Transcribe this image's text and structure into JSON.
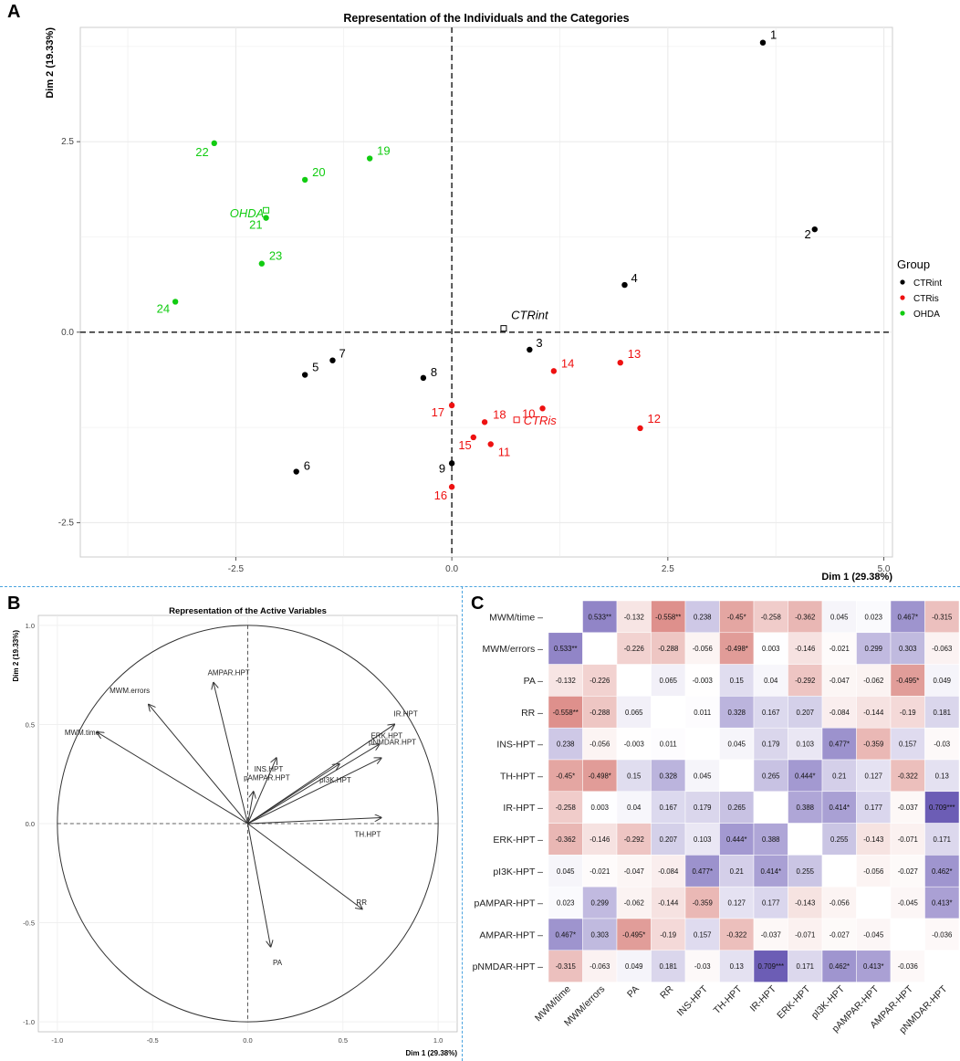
{
  "chart_data": [
    {
      "panel": "A",
      "type": "scatter",
      "title": "Representation of the Individuals and the Categories",
      "xlabel": "Dim 1 (29.38%)",
      "ylabel": "Dim 2 (19.33%)",
      "xlim": [
        -4.3,
        5.1
      ],
      "ylim": [
        -2.95,
        4.0
      ],
      "xticks": [
        -2.5,
        0.0,
        2.5,
        5.0
      ],
      "xtick_labels": [
        "-2.5",
        "0.0",
        "2.5",
        "5.0"
      ],
      "yticks": [
        -2.5,
        0.0,
        2.5
      ],
      "ytick_labels": [
        "-2.5",
        "0.0",
        "2.5"
      ],
      "grid": true,
      "legend": {
        "title": "Group",
        "position": "right",
        "entries": [
          {
            "label": "CTRint",
            "color": "#000000"
          },
          {
            "label": "CTRis",
            "color": "#ee1111"
          },
          {
            "label": "OHDA",
            "color": "#11cc11"
          }
        ]
      },
      "groups": {
        "CTRint": "#000000",
        "CTRis": "#ee1111",
        "OHDA": "#11cc11"
      },
      "points": [
        {
          "label": "1",
          "x": 3.6,
          "y": 3.8,
          "group": "CTRint"
        },
        {
          "label": "2",
          "x": 4.2,
          "y": 1.35,
          "group": "CTRint"
        },
        {
          "label": "3",
          "x": 0.9,
          "y": -0.23,
          "group": "CTRint"
        },
        {
          "label": "4",
          "x": 2.0,
          "y": 0.62,
          "group": "CTRint"
        },
        {
          "label": "5",
          "x": -1.7,
          "y": -0.56,
          "group": "CTRint"
        },
        {
          "label": "6",
          "x": -1.8,
          "y": -1.83,
          "group": "CTRint"
        },
        {
          "label": "7",
          "x": -1.38,
          "y": -0.37,
          "group": "CTRint"
        },
        {
          "label": "8",
          "x": -0.33,
          "y": -0.6,
          "group": "CTRint"
        },
        {
          "label": "9",
          "x": 0.0,
          "y": -1.72,
          "group": "CTRint"
        },
        {
          "label": "10",
          "x": 1.05,
          "y": -1.0,
          "group": "CTRis"
        },
        {
          "label": "11",
          "x": 0.45,
          "y": -1.47,
          "group": "CTRis"
        },
        {
          "label": "12",
          "x": 2.18,
          "y": -1.26,
          "group": "CTRis"
        },
        {
          "label": "13",
          "x": 1.95,
          "y": -0.4,
          "group": "CTRis"
        },
        {
          "label": "14",
          "x": 1.18,
          "y": -0.51,
          "group": "CTRis"
        },
        {
          "label": "15",
          "x": 0.25,
          "y": -1.38,
          "group": "CTRis"
        },
        {
          "label": "16",
          "x": 0.0,
          "y": -2.03,
          "group": "CTRis"
        },
        {
          "label": "17",
          "x": 0.0,
          "y": -0.96,
          "group": "CTRis"
        },
        {
          "label": "18",
          "x": 0.38,
          "y": -1.18,
          "group": "CTRis"
        },
        {
          "label": "19",
          "x": -0.95,
          "y": 2.28,
          "group": "OHDA"
        },
        {
          "label": "20",
          "x": -1.7,
          "y": 2.0,
          "group": "OHDA"
        },
        {
          "label": "21",
          "x": -2.15,
          "y": 1.5,
          "group": "OHDA"
        },
        {
          "label": "22",
          "x": -2.75,
          "y": 2.48,
          "group": "OHDA"
        },
        {
          "label": "23",
          "x": -2.2,
          "y": 0.9,
          "group": "OHDA"
        },
        {
          "label": "24",
          "x": -3.2,
          "y": 0.4,
          "group": "OHDA"
        }
      ],
      "categories": [
        {
          "label": "CTRint",
          "x": 0.6,
          "y": 0.05,
          "group": "CTRint"
        },
        {
          "label": "CTRis",
          "x": 0.75,
          "y": -1.15,
          "group": "CTRis"
        },
        {
          "label": "OHDA",
          "x": -2.15,
          "y": 1.6,
          "group": "OHDA"
        }
      ]
    },
    {
      "panel": "B",
      "type": "scatter",
      "subtype": "correlation-circle",
      "title": "Representation of the Active Variables",
      "xlabel": "Dim 1 (29.38%)",
      "ylabel": "Dim 2 (19.33%)",
      "xlim": [
        -1.1,
        1.1
      ],
      "ylim": [
        -1.05,
        1.05
      ],
      "xticks": [
        -1.0,
        -0.5,
        0.0,
        0.5,
        1.0
      ],
      "xtick_labels": [
        "-1.0",
        "-0.5",
        "0.0",
        "0.5",
        "1.0"
      ],
      "yticks": [
        -1.0,
        -0.5,
        0.0,
        0.5,
        1.0
      ],
      "ytick_labels": [
        "-1.0",
        "-0.5",
        "0.0",
        "0.5",
        "1.0"
      ],
      "grid": false,
      "variables": [
        {
          "name": "MWM.time",
          "x": -0.79,
          "y": 0.46
        },
        {
          "name": "MWM.errors",
          "x": -0.52,
          "y": 0.6
        },
        {
          "name": "AMPAR.HPT",
          "x": -0.18,
          "y": 0.71
        },
        {
          "name": "INS.HPT",
          "x": 0.15,
          "y": 0.33
        },
        {
          "name": "pAMPAR.HPT",
          "x": 0.03,
          "y": 0.16
        },
        {
          "name": "pI3K.HPT",
          "x": 0.48,
          "y": 0.3
        },
        {
          "name": "ERK.HPT",
          "x": 0.69,
          "y": 0.4
        },
        {
          "name": "IR.HPT",
          "x": 0.77,
          "y": 0.5
        },
        {
          "name": "pNMDAR.HPT",
          "x": 0.7,
          "y": 0.33
        },
        {
          "name": "TH.HPT",
          "x": 0.7,
          "y": 0.03
        },
        {
          "name": "RR",
          "x": 0.6,
          "y": -0.43
        },
        {
          "name": "PA",
          "x": 0.12,
          "y": -0.62
        }
      ]
    },
    {
      "panel": "C",
      "type": "heatmap",
      "variables": [
        "MWM/time",
        "MWM/errors",
        "PA",
        "RR",
        "INS-HPT",
        "TH-HPT",
        "IR-HPT",
        "ERK-HPT",
        "pI3K-HPT",
        "pAMPAR-HPT",
        "AMPAR-HPT",
        "pNMDAR-HPT"
      ],
      "values": [
        [
          null,
          0.533,
          -0.132,
          -0.558,
          0.238,
          -0.45,
          -0.258,
          -0.362,
          0.045,
          0.023,
          0.467,
          -0.315
        ],
        [
          0.533,
          null,
          -0.226,
          -0.288,
          -0.056,
          -0.498,
          0.003,
          -0.146,
          -0.021,
          0.299,
          0.303,
          -0.063
        ],
        [
          -0.132,
          -0.226,
          null,
          0.065,
          -0.003,
          0.15,
          0.04,
          -0.292,
          -0.047,
          -0.062,
          -0.495,
          0.049
        ],
        [
          -0.558,
          -0.288,
          0.065,
          null,
          0.011,
          0.328,
          0.167,
          0.207,
          -0.084,
          -0.144,
          -0.19,
          0.181
        ],
        [
          0.238,
          -0.056,
          -0.003,
          0.011,
          null,
          0.045,
          0.179,
          0.103,
          0.477,
          -0.359,
          0.157,
          -0.03
        ],
        [
          -0.45,
          -0.498,
          0.15,
          0.328,
          0.045,
          null,
          0.265,
          0.444,
          0.21,
          0.127,
          -0.322,
          0.13
        ],
        [
          -0.258,
          0.003,
          0.04,
          0.167,
          0.179,
          0.265,
          null,
          0.388,
          0.414,
          0.177,
          -0.037,
          0.709
        ],
        [
          -0.362,
          -0.146,
          -0.292,
          0.207,
          0.103,
          0.444,
          0.388,
          null,
          0.255,
          -0.143,
          -0.071,
          0.171
        ],
        [
          0.045,
          -0.021,
          -0.047,
          -0.084,
          0.477,
          0.21,
          0.414,
          0.255,
          null,
          -0.056,
          -0.027,
          0.462
        ],
        [
          0.023,
          0.299,
          -0.062,
          -0.144,
          -0.359,
          0.127,
          0.177,
          -0.143,
          -0.056,
          null,
          -0.045,
          0.413
        ],
        [
          0.467,
          0.303,
          -0.495,
          -0.19,
          0.157,
          -0.322,
          -0.037,
          -0.071,
          -0.027,
          -0.045,
          null,
          -0.036
        ],
        [
          -0.315,
          -0.063,
          0.049,
          0.181,
          -0.03,
          0.13,
          0.709,
          0.171,
          0.462,
          0.413,
          -0.036,
          null
        ]
      ],
      "labels": [
        [
          "",
          "0.533**",
          "-0.132",
          "-0.558**",
          "0.238",
          "-0.45*",
          "-0.258",
          "-0.362",
          "0.045",
          "0.023",
          "0.467*",
          "-0.315"
        ],
        [
          "0.533**",
          "",
          "-0.226",
          "-0.288",
          "-0.056",
          "-0.498*",
          "0.003",
          "-0.146",
          "-0.021",
          "0.299",
          "0.303",
          "-0.063"
        ],
        [
          "-0.132",
          "-0.226",
          "",
          "0.065",
          "-0.003",
          "0.15",
          "0.04",
          "-0.292",
          "-0.047",
          "-0.062",
          "-0.495*",
          "0.049"
        ],
        [
          "-0.558**",
          "-0.288",
          "0.065",
          "",
          "0.011",
          "0.328",
          "0.167",
          "0.207",
          "-0.084",
          "-0.144",
          "-0.19",
          "0.181"
        ],
        [
          "0.238",
          "-0.056",
          "-0.003",
          "0.011",
          "",
          "0.045",
          "0.179",
          "0.103",
          "0.477*",
          "-0.359",
          "0.157",
          "-0.03"
        ],
        [
          "-0.45*",
          "-0.498*",
          "0.15",
          "0.328",
          "0.045",
          "",
          "0.265",
          "0.444*",
          "0.21",
          "0.127",
          "-0.322",
          "0.13"
        ],
        [
          "-0.258",
          "0.003",
          "0.04",
          "0.167",
          "0.179",
          "0.265",
          "",
          "0.388",
          "0.414*",
          "0.177",
          "-0.037",
          "0.709***"
        ],
        [
          "-0.362",
          "-0.146",
          "-0.292",
          "0.207",
          "0.103",
          "0.444*",
          "0.388",
          "",
          "0.255",
          "-0.143",
          "-0.071",
          "0.171"
        ],
        [
          "0.045",
          "-0.021",
          "-0.047",
          "-0.084",
          "0.477*",
          "0.21",
          "0.414*",
          "0.255",
          "",
          "-0.056",
          "-0.027",
          "0.462*"
        ],
        [
          "0.023",
          "0.299",
          "-0.062",
          "-0.144",
          "-0.359",
          "0.127",
          "0.177",
          "-0.143",
          "-0.056",
          "",
          "-0.045",
          "0.413*"
        ],
        [
          "0.467*",
          "0.303",
          "-0.495*",
          "-0.19",
          "0.157",
          "-0.322",
          "-0.037",
          "-0.071",
          "-0.027",
          "-0.045",
          "",
          "-0.036"
        ],
        [
          "-0.315",
          "-0.063",
          "0.049",
          "0.181",
          "-0.03",
          "0.13",
          "0.709***",
          "0.171",
          "0.462*",
          "0.413*",
          "-0.036",
          ""
        ]
      ],
      "colors": {
        "positive": "#6a5bb4",
        "negative": "#d4706a",
        "neutral": "#ffffff"
      }
    }
  ],
  "panels": {
    "a": "A",
    "b": "B",
    "c": "C"
  }
}
